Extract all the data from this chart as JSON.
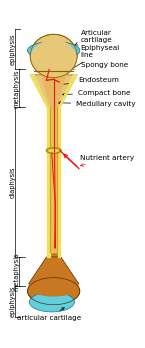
{
  "background_color": "#ffffff",
  "bone_color": "#c87820",
  "epiphysis_top_color": "#e8c878",
  "cartilage_color": "#60d0e0",
  "inner_bone_color": "#e8b860",
  "compact_yellow": "#f0e060",
  "artery_color": "#ee1111",
  "label_fontsize": 5.2,
  "side_label_fontsize": 4.8,
  "labels": {
    "articular_cartilage_top": "Articular\ncartilage",
    "epiphyseal_line": "Epiphyseal\nline",
    "spongy_bone": "Spongy bone",
    "endosteum": "Endosteum",
    "compact_bone": "Compact bone",
    "medullary_cavity": "Medullary cavity",
    "nutrient_artery": "Nutrient artery",
    "articular_cartilage_bot": "articular cartilage"
  }
}
